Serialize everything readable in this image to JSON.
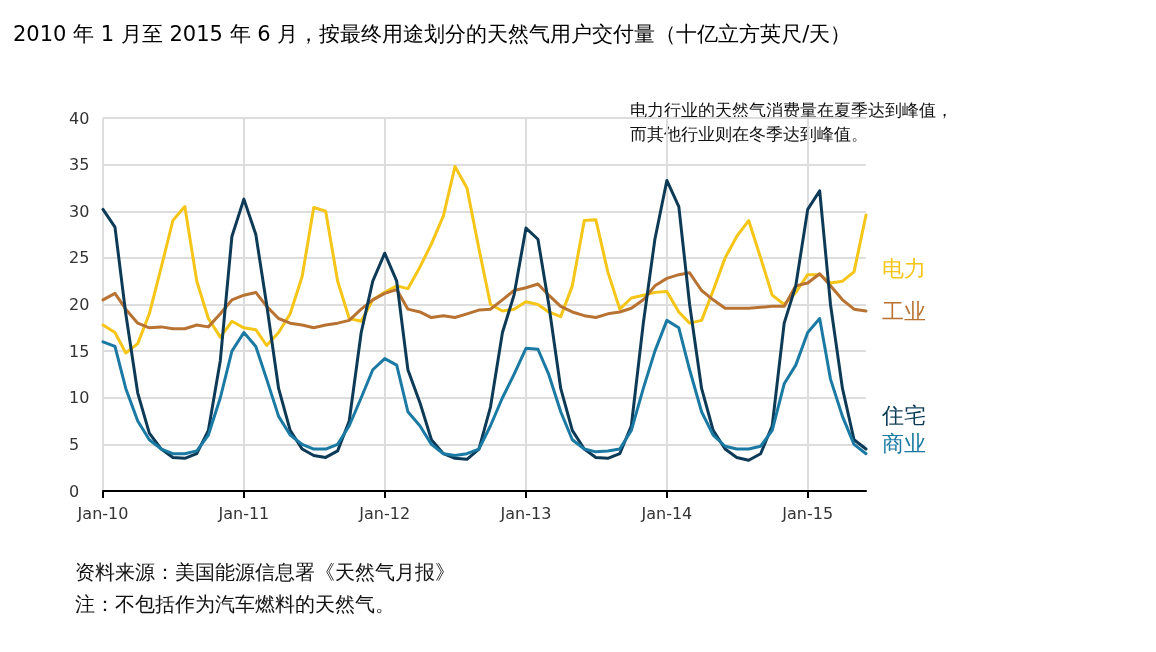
{
  "chart_data": {
    "type": "line",
    "title": "2010 年 1 月至 2015 年 6 月，按最终用途划分的天然气用户交付量（十亿立方英尺/天）",
    "annotations": [
      "电力行业的天然气消费量在夏季达到峰值，而其他行业则在冬季达到峰值。",
      "资料来源：美国能源信息署《天然气月报》",
      "注：不包括作为汽车燃料的天然气。"
    ],
    "x": [
      "2010-01",
      "2010-02",
      "2010-03",
      "2010-04",
      "2010-05",
      "2010-06",
      "2010-07",
      "2010-08",
      "2010-09",
      "2010-10",
      "2010-11",
      "2010-12",
      "2011-01",
      "2011-02",
      "2011-03",
      "2011-04",
      "2011-05",
      "2011-06",
      "2011-07",
      "2011-08",
      "2011-09",
      "2011-10",
      "2011-11",
      "2011-12",
      "2012-01",
      "2012-02",
      "2012-03",
      "2012-04",
      "2012-05",
      "2012-06",
      "2012-07",
      "2012-08",
      "2012-09",
      "2012-10",
      "2012-11",
      "2012-12",
      "2013-01",
      "2013-02",
      "2013-03",
      "2013-04",
      "2013-05",
      "2013-06",
      "2013-07",
      "2013-08",
      "2013-09",
      "2013-10",
      "2013-11",
      "2013-12",
      "2014-01",
      "2014-02",
      "2014-03",
      "2014-04",
      "2014-05",
      "2014-06",
      "2014-07",
      "2014-08",
      "2014-09",
      "2014-10",
      "2014-11",
      "2014-12",
      "2015-01",
      "2015-02",
      "2015-03",
      "2015-04",
      "2015-05",
      "2015-06"
    ],
    "series": [
      {
        "name": "电力",
        "color": "#f5c518",
        "values": [
          17.8,
          17,
          14.8,
          15.8,
          19,
          24,
          29,
          30.5,
          22.5,
          18.5,
          16.5,
          18.2,
          17.5,
          17.3,
          15.6,
          17,
          19,
          23,
          30.4,
          30,
          22.5,
          18.5,
          18.2,
          20.5,
          21.3,
          22,
          21.7,
          24,
          26.5,
          29.5,
          34.8,
          32.5,
          26,
          20,
          19.3,
          19.5,
          20.3,
          20,
          19.2,
          18.7,
          22,
          29,
          29.1,
          23.5,
          19.5,
          20.7,
          21,
          21.3,
          21.4,
          19.2,
          18,
          18.3,
          21.5,
          25,
          27.3,
          29,
          25,
          21,
          20,
          21.3,
          23.2,
          23.2,
          22.3,
          22.5,
          23.5,
          29.6
        ]
      },
      {
        "name": "工业",
        "color": "#b87333",
        "values": [
          20.5,
          21.2,
          19.5,
          18,
          17.5,
          17.6,
          17.4,
          17.4,
          17.8,
          17.6,
          19,
          20.5,
          21,
          21.3,
          19.8,
          18.5,
          18,
          17.8,
          17.5,
          17.8,
          18,
          18.3,
          19.5,
          20.5,
          21.2,
          21.6,
          19.5,
          19.2,
          18.6,
          18.8,
          18.6,
          19,
          19.4,
          19.5,
          20.5,
          21.5,
          21.8,
          22.2,
          21,
          19.8,
          19.2,
          18.8,
          18.6,
          19,
          19.2,
          19.6,
          20.5,
          22,
          22.8,
          23.2,
          23.4,
          21.5,
          20.5,
          19.6,
          19.6,
          19.6,
          19.7,
          19.8,
          19.8,
          22,
          22.3,
          23.3,
          22,
          20.5,
          19.5,
          19.3
        ]
      },
      {
        "name": "住宅",
        "color": "#0d3b57",
        "values": [
          30.2,
          28.3,
          19,
          10.5,
          6.2,
          4.5,
          3.6,
          3.5,
          4,
          6.5,
          14,
          27.3,
          31.3,
          27.5,
          20,
          11,
          6.5,
          4.5,
          3.8,
          3.6,
          4.3,
          7.5,
          17,
          22.5,
          25.5,
          22.5,
          13,
          9.5,
          5.5,
          4,
          3.5,
          3.4,
          4.5,
          9,
          17,
          21,
          28.2,
          27,
          20,
          11,
          6.5,
          4.5,
          3.6,
          3.5,
          4,
          7,
          18,
          27,
          33.3,
          30.5,
          20,
          11,
          6.5,
          4.5,
          3.6,
          3.3,
          4,
          7,
          18,
          22,
          30.2,
          32.2,
          20,
          11,
          5.5,
          4.5
        ]
      },
      {
        "name": "商业",
        "color": "#1a7aa3",
        "values": [
          16,
          15.5,
          11,
          7.5,
          5.5,
          4.5,
          4,
          4,
          4.3,
          6,
          10,
          15,
          17,
          15.5,
          12,
          8,
          6,
          5,
          4.5,
          4.5,
          5,
          7,
          10,
          13,
          14.2,
          13.5,
          8.5,
          7,
          5,
          4,
          3.8,
          4,
          4.5,
          7,
          10,
          12.5,
          15.3,
          15.2,
          12.5,
          8.5,
          5.5,
          4.5,
          4.2,
          4.3,
          4.5,
          6.5,
          11,
          15,
          18.3,
          17.5,
          13,
          8.5,
          6,
          4.8,
          4.5,
          4.5,
          4.8,
          6.5,
          11.5,
          13.5,
          17,
          18.5,
          12,
          8,
          5,
          4
        ]
      }
    ],
    "xlim": [
      "2010-01",
      "2015-06"
    ],
    "xticks": [
      {
        "value": "2010-01",
        "label": "Jan-10"
      },
      {
        "value": "2011-01",
        "label": "Jan-11"
      },
      {
        "value": "2012-01",
        "label": "Jan-12"
      },
      {
        "value": "2013-01",
        "label": "Jan-13"
      },
      {
        "value": "2014-01",
        "label": "Jan-14"
      },
      {
        "value": "2015-01",
        "label": "Jan-15"
      }
    ],
    "ylim": [
      0,
      40
    ],
    "yticks": [
      0,
      5,
      10,
      15,
      20,
      25,
      30,
      35,
      40
    ],
    "grid": true,
    "legend": false,
    "marker": "none",
    "line_style": "solid"
  }
}
